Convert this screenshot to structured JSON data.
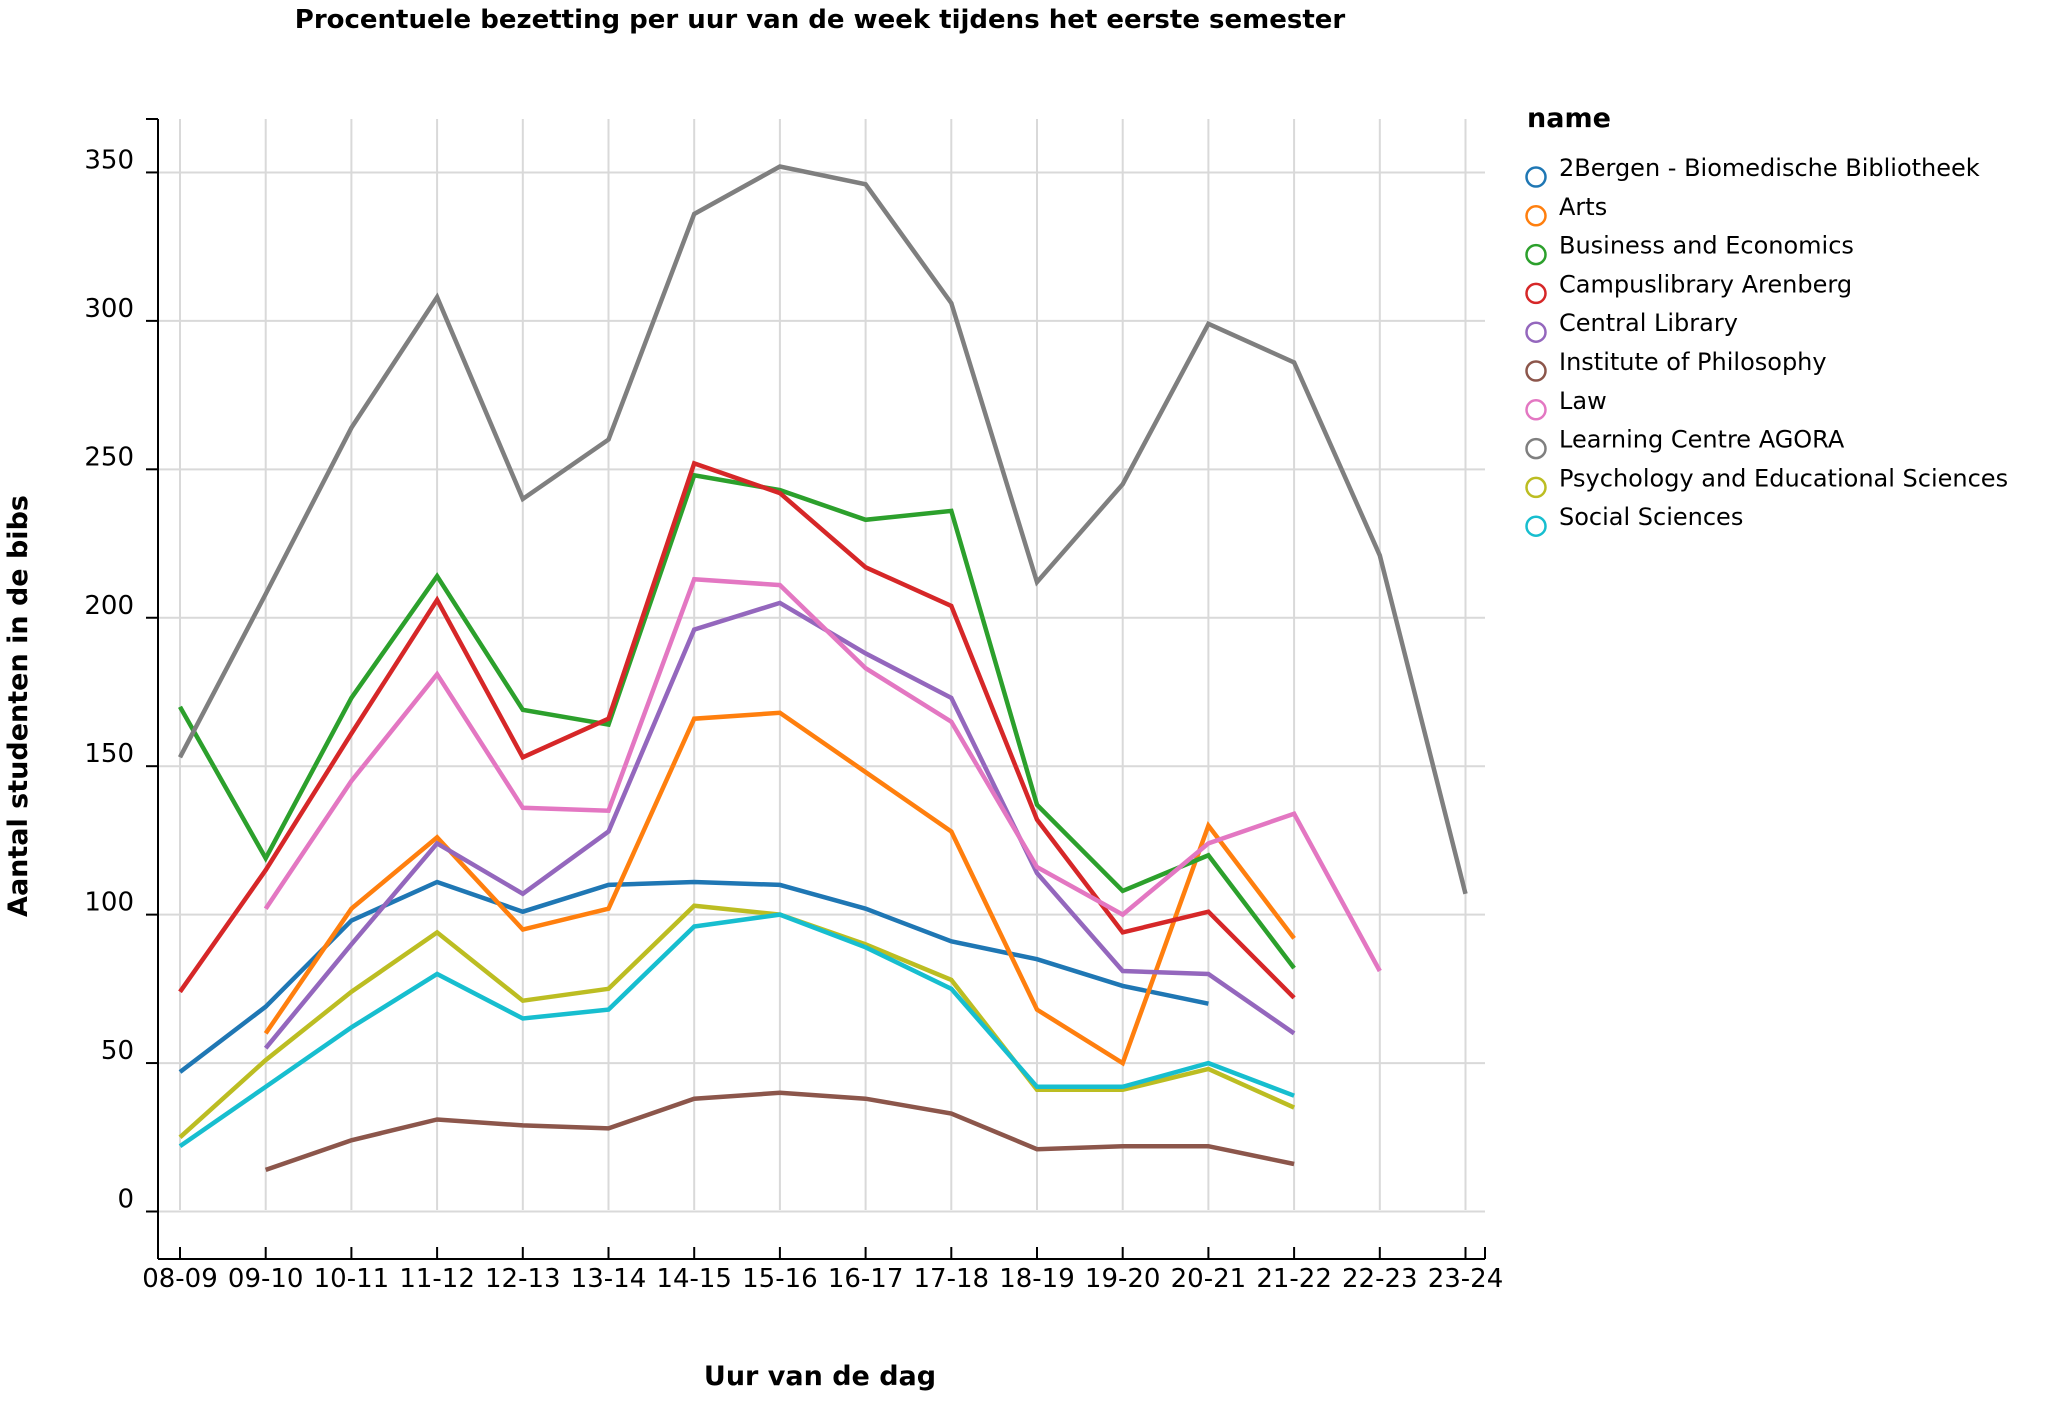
{
  "chart_data": {
    "type": "line",
    "title": "Procentuele bezetting per uur van de week tijdens het eerste semester",
    "xlabel": "Uur van de dag",
    "ylabel": "Aantal studenten in de bibs",
    "x_tick_labels": [
      "08-09",
      "09-10",
      "10-11",
      "11-12",
      "12-13",
      "13-14",
      "14-15",
      "15-16",
      "16-17",
      "17-18",
      "18-19",
      "19-20",
      "20-21",
      "21-22",
      "22-23",
      "23-24"
    ],
    "y_ticks": [
      0,
      50,
      100,
      150,
      200,
      250,
      300,
      350
    ],
    "ylim": [
      -16,
      368
    ],
    "grid": true,
    "legend_title": "name",
    "legend_position": "right",
    "series": [
      {
        "name": "2Bergen - Biomedische Bibliotheek",
        "color": "#1f77b4",
        "values": [
          47,
          69,
          98,
          111,
          101,
          110,
          111,
          110,
          102,
          91,
          85,
          76,
          70,
          null,
          null,
          null
        ]
      },
      {
        "name": "Arts",
        "color": "#ff7f0e",
        "values": [
          null,
          60,
          102,
          126,
          95,
          102,
          166,
          168,
          148,
          128,
          68,
          50,
          130,
          92,
          null,
          null
        ]
      },
      {
        "name": "Business and Economics",
        "color": "#2ca02c",
        "values": [
          170,
          119,
          173,
          214,
          169,
          164,
          248,
          243,
          233,
          236,
          137,
          108,
          120,
          82,
          null,
          null
        ]
      },
      {
        "name": "Campuslibrary Arenberg",
        "color": "#d62728",
        "values": [
          74,
          115,
          161,
          206,
          153,
          166,
          252,
          242,
          217,
          204,
          132,
          94,
          101,
          72,
          null,
          null
        ]
      },
      {
        "name": "Central Library",
        "color": "#9467bd",
        "values": [
          null,
          55,
          90,
          124,
          107,
          128,
          196,
          205,
          188,
          173,
          114,
          81,
          80,
          60,
          null,
          null
        ]
      },
      {
        "name": "Institute of Philosophy",
        "color": "#8c564b",
        "values": [
          null,
          14,
          24,
          31,
          29,
          28,
          38,
          40,
          38,
          33,
          21,
          22,
          22,
          16,
          null,
          null
        ]
      },
      {
        "name": "Law",
        "color": "#e377c2",
        "values": [
          null,
          102,
          145,
          181,
          136,
          135,
          213,
          211,
          183,
          165,
          116,
          100,
          124,
          134,
          81,
          null
        ]
      },
      {
        "name": "Learning Centre AGORA",
        "color": "#7f7f7f",
        "values": [
          153,
          208,
          264,
          308,
          240,
          260,
          336,
          352,
          346,
          306,
          212,
          245,
          299,
          286,
          221,
          107
        ]
      },
      {
        "name": "Psychology and Educational Sciences",
        "color": "#bcbd22",
        "values": [
          25,
          51,
          74,
          94,
          71,
          75,
          103,
          100,
          90,
          78,
          41,
          41,
          48,
          35,
          null,
          null
        ]
      },
      {
        "name": "Social Sciences",
        "color": "#17becf",
        "values": [
          22,
          42,
          62,
          80,
          65,
          68,
          96,
          100,
          89,
          75,
          42,
          42,
          50,
          39,
          null,
          null
        ]
      }
    ]
  }
}
